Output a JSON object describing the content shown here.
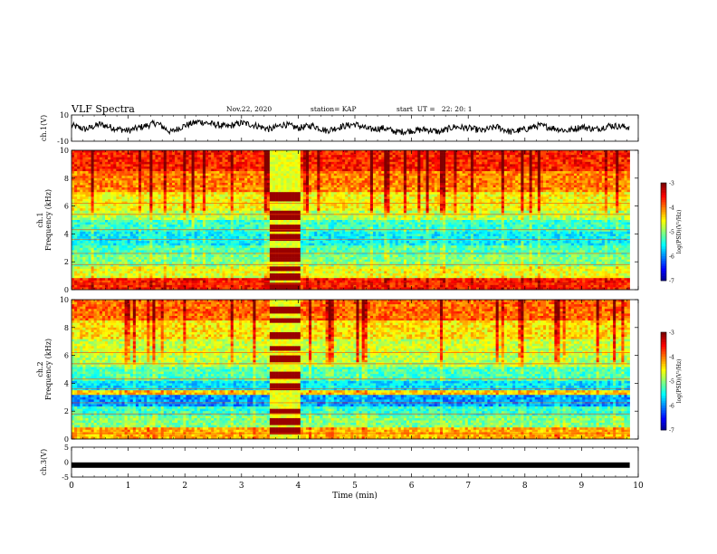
{
  "header": {
    "title": "VLF Spectra",
    "date": "Nov.22, 2020",
    "station": "station= KAP",
    "start": "start  UT =   22: 20: 1"
  },
  "chart_data": [
    {
      "type": "line",
      "panel": "ch1-waveform",
      "ylabel": "ch.1(V)",
      "ylim": [
        -10,
        10
      ],
      "yticks": [
        "10",
        "-10"
      ],
      "x": [
        0,
        0.25,
        0.5,
        0.75,
        1,
        1.25,
        1.5,
        1.75,
        2,
        2.25,
        2.5,
        2.75,
        3,
        3.25,
        3.5,
        3.75,
        4,
        4.25,
        4.5,
        4.75,
        5,
        5.25,
        5.5,
        5.75,
        6,
        6.25,
        6.5,
        6.75,
        7,
        7.25,
        7.5,
        7.75,
        8,
        8.25,
        8.5,
        8.75,
        9,
        9.25,
        9.5,
        9.75
      ],
      "values": [
        2,
        -1,
        3,
        0,
        -2,
        1,
        4,
        -3,
        2,
        5,
        3,
        1,
        4,
        2,
        -1,
        3,
        0,
        2,
        -2,
        1,
        3,
        -1,
        0,
        -3,
        -2,
        -1,
        -3,
        1,
        0,
        -2,
        1,
        -3,
        -1,
        2,
        0,
        -2,
        1,
        -1,
        2,
        1
      ]
    },
    {
      "type": "heatmap",
      "panel": "ch1-spectrogram",
      "ylabel": "ch.1\nFrequency (kHz)",
      "ylim": [
        0,
        10
      ],
      "yticks": [
        "0",
        "2",
        "4",
        "6",
        "8",
        "10"
      ],
      "xlim": [
        0,
        9.85
      ],
      "colorbar": {
        "label": "log(PSD)(V²/Hz)",
        "range": [
          -7,
          -3
        ],
        "ticks": [
          "-3",
          "-4",
          "-5",
          "-6",
          "-7"
        ]
      },
      "bands_khz": [
        [
          0,
          0.8,
          -3.6
        ],
        [
          0.8,
          1.7,
          -4.6
        ],
        [
          1.7,
          2.5,
          -5.0
        ],
        [
          2.5,
          3.2,
          -5.2
        ],
        [
          3.2,
          4.2,
          -5.5
        ],
        [
          4.2,
          5.0,
          -5.3
        ],
        [
          5.0,
          5.6,
          -4.8
        ],
        [
          5.6,
          7.0,
          -4.5
        ],
        [
          7.0,
          8.5,
          -4.0
        ],
        [
          8.5,
          10,
          -3.6
        ]
      ],
      "burst_min": [
        3.5,
        4.05
      ],
      "burst_lines_khz": [
        0.3,
        0.9,
        1.5,
        2.3,
        2.7,
        3.7,
        4.4,
        5.2,
        5.5,
        6.5,
        6.8
      ]
    },
    {
      "type": "heatmap",
      "panel": "ch2-spectrogram",
      "ylabel": "ch.2\nFrequency (kHz)",
      "ylim": [
        0,
        10
      ],
      "yticks": [
        "0",
        "2",
        "4",
        "6",
        "8",
        "10"
      ],
      "xlim": [
        0,
        9.85
      ],
      "colorbar": {
        "label": "log(PSD)(V²/Hz)",
        "range": [
          -7,
          -3
        ],
        "ticks": [
          "-3",
          "-4",
          "-5",
          "-6",
          "-7"
        ]
      },
      "bands_khz": [
        [
          0,
          0.8,
          -4.2
        ],
        [
          0.8,
          1.6,
          -5.0
        ],
        [
          1.6,
          2.4,
          -5.3
        ],
        [
          2.4,
          3.2,
          -5.9
        ],
        [
          3.2,
          3.5,
          -4.3
        ],
        [
          3.5,
          4.2,
          -5.6
        ],
        [
          4.2,
          5.2,
          -5.2
        ],
        [
          5.2,
          6.0,
          -4.8
        ],
        [
          6.0,
          7.2,
          -4.7
        ],
        [
          7.2,
          8.5,
          -4.4
        ],
        [
          8.5,
          10,
          -3.9
        ]
      ],
      "burst_min": [
        3.5,
        4.05
      ],
      "burst_lines_khz": [
        0.6,
        1.2,
        2.0,
        3.8,
        4.6,
        5.8,
        6.5,
        7.4,
        8.5,
        9.3
      ]
    },
    {
      "type": "line",
      "panel": "ch3-waveform",
      "ylabel": "ch.3(V)",
      "ylim": [
        -5,
        5
      ],
      "yticks": [
        "5",
        "0",
        "-5"
      ],
      "level": -1.0
    }
  ],
  "xaxis": {
    "label": "Time (min)",
    "xlim": [
      0,
      10
    ],
    "ticks": [
      "0",
      "1",
      "2",
      "3",
      "4",
      "5",
      "6",
      "7",
      "8",
      "9",
      "10"
    ]
  }
}
